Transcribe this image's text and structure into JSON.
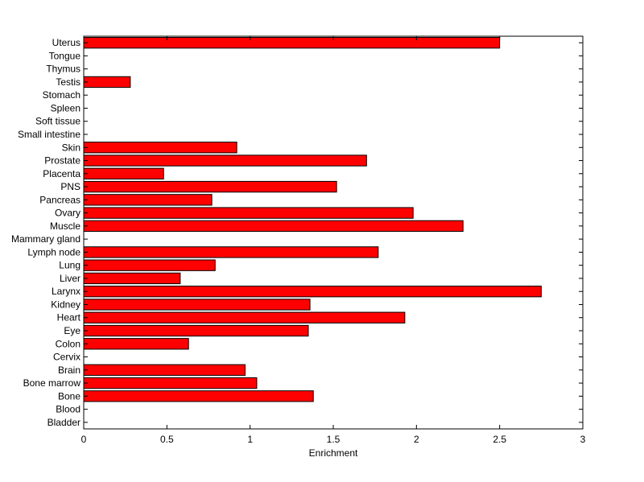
{
  "chart_data": {
    "type": "bar",
    "orientation": "horizontal",
    "title": "",
    "xlabel": "Enrichment",
    "ylabel": "",
    "xlim": [
      0,
      3
    ],
    "xticks": [
      "0",
      "0.5",
      "1",
      "1.5",
      "2",
      "2.5",
      "3"
    ],
    "grid": false,
    "legend": "none",
    "bar_color": "#ff0000",
    "categories": [
      "Uterus",
      "Tongue",
      "Thymus",
      "Testis",
      "Stomach",
      "Spleen",
      "Soft tissue",
      "Small intestine",
      "Skin",
      "Prostate",
      "Placenta",
      "PNS",
      "Pancreas",
      "Ovary",
      "Muscle",
      "Mammary gland",
      "Lymph node",
      "Lung",
      "Liver",
      "Larynx",
      "Kidney",
      "Heart",
      "Eye",
      "Colon",
      "Cervix",
      "Brain",
      "Bone marrow",
      "Bone",
      "Blood",
      "Bladder"
    ],
    "values": [
      2.5,
      0,
      0,
      0.28,
      0,
      0,
      0,
      0,
      0.92,
      1.7,
      0.48,
      1.52,
      0.77,
      1.98,
      2.28,
      0,
      1.77,
      0.79,
      0.58,
      2.75,
      1.36,
      1.93,
      1.35,
      0.63,
      0,
      0.97,
      1.04,
      1.38,
      0,
      0
    ]
  }
}
